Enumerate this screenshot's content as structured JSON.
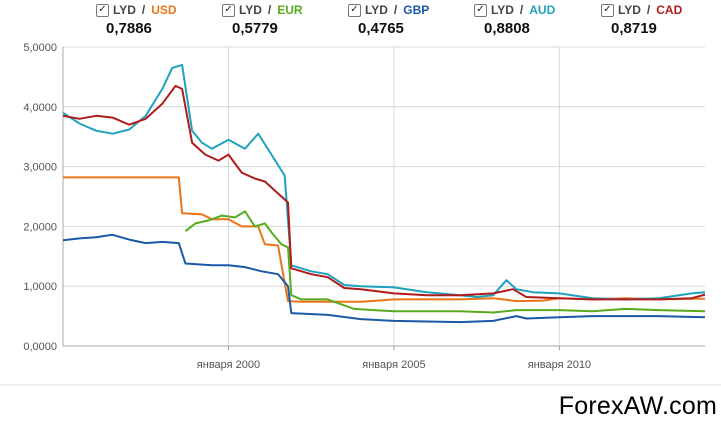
{
  "legend": [
    {
      "base": "LYD",
      "quote": "USD",
      "rate": "0,7886",
      "color": "#e8751a"
    },
    {
      "base": "LYD",
      "quote": "EUR",
      "rate": "0,5779",
      "color": "#5aaa1e"
    },
    {
      "base": "LYD",
      "quote": "GBP",
      "rate": "0,4765",
      "color": "#1a58a6"
    },
    {
      "base": "LYD",
      "quote": "AUD",
      "rate": "0,8808",
      "color": "#1fa2bd"
    },
    {
      "base": "LYD",
      "quote": "CAD",
      "rate": "0,8719",
      "color": "#b01c1c"
    }
  ],
  "watermark": "ForexAW.com",
  "chart_data": {
    "type": "line",
    "ylim": [
      0,
      5
    ],
    "xlim": [
      1995.0,
      2014.4
    ],
    "y_ticks": [
      "0,0000",
      "1,0000",
      "2,0000",
      "3,0000",
      "4,0000",
      "5,0000"
    ],
    "x_ticks": [
      {
        "value": 2000,
        "label": "января 2000"
      },
      {
        "value": 2005,
        "label": "января 2005"
      },
      {
        "value": 2010,
        "label": "января 2010"
      }
    ],
    "grid": true,
    "legend_position": "top",
    "series": [
      {
        "name": "LYD / USD",
        "color": "#e8751a",
        "points": [
          [
            1995.0,
            2.82
          ],
          [
            1998.5,
            2.82
          ],
          [
            1998.6,
            2.22
          ],
          [
            1999.2,
            2.2
          ],
          [
            1999.5,
            2.12
          ],
          [
            2000.0,
            2.12
          ],
          [
            2000.4,
            2.0
          ],
          [
            2000.9,
            2.0
          ],
          [
            2001.1,
            1.7
          ],
          [
            2001.5,
            1.68
          ],
          [
            2001.7,
            1.05
          ],
          [
            2001.8,
            0.75
          ],
          [
            2002.2,
            0.74
          ],
          [
            2004.0,
            0.74
          ],
          [
            2004.5,
            0.76
          ],
          [
            2005.0,
            0.78
          ],
          [
            2007.0,
            0.78
          ],
          [
            2008.0,
            0.8
          ],
          [
            2008.7,
            0.75
          ],
          [
            2009.5,
            0.76
          ],
          [
            2010.0,
            0.8
          ],
          [
            2011.0,
            0.78
          ],
          [
            2012.0,
            0.8
          ],
          [
            2013.0,
            0.78
          ],
          [
            2014.0,
            0.79
          ],
          [
            2014.4,
            0.79
          ]
        ]
      },
      {
        "name": "LYD / EUR",
        "color": "#5aaa1e",
        "points": [
          [
            1998.7,
            1.92
          ],
          [
            1999.0,
            2.05
          ],
          [
            1999.4,
            2.1
          ],
          [
            1999.8,
            2.18
          ],
          [
            2000.2,
            2.15
          ],
          [
            2000.5,
            2.25
          ],
          [
            2000.8,
            2.0
          ],
          [
            2001.1,
            2.05
          ],
          [
            2001.3,
            1.9
          ],
          [
            2001.6,
            1.7
          ],
          [
            2001.8,
            1.65
          ],
          [
            2001.9,
            0.85
          ],
          [
            2002.2,
            0.78
          ],
          [
            2003.0,
            0.78
          ],
          [
            2003.8,
            0.62
          ],
          [
            2005.0,
            0.58
          ],
          [
            2007.0,
            0.58
          ],
          [
            2008.0,
            0.56
          ],
          [
            2008.7,
            0.6
          ],
          [
            2010.0,
            0.6
          ],
          [
            2011.0,
            0.58
          ],
          [
            2012.0,
            0.62
          ],
          [
            2013.0,
            0.6
          ],
          [
            2014.4,
            0.58
          ]
        ]
      },
      {
        "name": "LYD / GBP",
        "color": "#1a58a6",
        "points": [
          [
            1995.0,
            1.77
          ],
          [
            1995.5,
            1.8
          ],
          [
            1996.0,
            1.82
          ],
          [
            1996.5,
            1.86
          ],
          [
            1997.0,
            1.78
          ],
          [
            1997.5,
            1.72
          ],
          [
            1998.0,
            1.74
          ],
          [
            1998.5,
            1.72
          ],
          [
            1998.7,
            1.38
          ],
          [
            1999.5,
            1.35
          ],
          [
            2000.0,
            1.35
          ],
          [
            2000.5,
            1.32
          ],
          [
            2001.0,
            1.25
          ],
          [
            2001.5,
            1.2
          ],
          [
            2001.8,
            1.0
          ],
          [
            2001.9,
            0.55
          ],
          [
            2003.0,
            0.52
          ],
          [
            2004.0,
            0.45
          ],
          [
            2005.0,
            0.42
          ],
          [
            2007.0,
            0.4
          ],
          [
            2008.0,
            0.42
          ],
          [
            2008.7,
            0.5
          ],
          [
            2009.0,
            0.46
          ],
          [
            2010.0,
            0.48
          ],
          [
            2011.0,
            0.5
          ],
          [
            2012.0,
            0.5
          ],
          [
            2013.0,
            0.5
          ],
          [
            2014.4,
            0.48
          ]
        ]
      },
      {
        "name": "LYD / AUD",
        "color": "#1fa2bd",
        "points": [
          [
            1995.0,
            3.9
          ],
          [
            1995.5,
            3.72
          ],
          [
            1996.0,
            3.6
          ],
          [
            1996.5,
            3.55
          ],
          [
            1997.0,
            3.62
          ],
          [
            1997.5,
            3.85
          ],
          [
            1998.0,
            4.3
          ],
          [
            1998.3,
            4.65
          ],
          [
            1998.6,
            4.7
          ],
          [
            1998.9,
            3.6
          ],
          [
            1999.2,
            3.4
          ],
          [
            1999.5,
            3.3
          ],
          [
            2000.0,
            3.45
          ],
          [
            2000.5,
            3.3
          ],
          [
            2000.9,
            3.55
          ],
          [
            2001.3,
            3.2
          ],
          [
            2001.7,
            2.85
          ],
          [
            2001.9,
            1.35
          ],
          [
            2002.5,
            1.25
          ],
          [
            2003.0,
            1.2
          ],
          [
            2003.5,
            1.02
          ],
          [
            2004.0,
            1.0
          ],
          [
            2005.0,
            0.98
          ],
          [
            2006.0,
            0.9
          ],
          [
            2007.0,
            0.85
          ],
          [
            2007.5,
            0.82
          ],
          [
            2008.0,
            0.85
          ],
          [
            2008.4,
            1.1
          ],
          [
            2008.7,
            0.95
          ],
          [
            2009.2,
            0.9
          ],
          [
            2010.0,
            0.88
          ],
          [
            2011.0,
            0.8
          ],
          [
            2012.0,
            0.78
          ],
          [
            2013.0,
            0.8
          ],
          [
            2014.0,
            0.88
          ],
          [
            2014.4,
            0.9
          ]
        ]
      },
      {
        "name": "LYD / CAD",
        "color": "#b01c1c",
        "points": [
          [
            1995.0,
            3.85
          ],
          [
            1995.5,
            3.8
          ],
          [
            1996.0,
            3.85
          ],
          [
            1996.5,
            3.82
          ],
          [
            1997.0,
            3.7
          ],
          [
            1997.5,
            3.8
          ],
          [
            1998.0,
            4.05
          ],
          [
            1998.4,
            4.35
          ],
          [
            1998.6,
            4.3
          ],
          [
            1998.9,
            3.4
          ],
          [
            1999.3,
            3.2
          ],
          [
            1999.7,
            3.1
          ],
          [
            2000.0,
            3.2
          ],
          [
            2000.4,
            2.9
          ],
          [
            2000.8,
            2.8
          ],
          [
            2001.1,
            2.75
          ],
          [
            2001.4,
            2.6
          ],
          [
            2001.8,
            2.4
          ],
          [
            2001.9,
            1.3
          ],
          [
            2002.5,
            1.2
          ],
          [
            2003.0,
            1.15
          ],
          [
            2003.5,
            0.97
          ],
          [
            2004.0,
            0.95
          ],
          [
            2005.0,
            0.88
          ],
          [
            2006.0,
            0.85
          ],
          [
            2007.0,
            0.85
          ],
          [
            2008.0,
            0.88
          ],
          [
            2008.6,
            0.95
          ],
          [
            2009.0,
            0.82
          ],
          [
            2010.0,
            0.8
          ],
          [
            2011.0,
            0.78
          ],
          [
            2012.0,
            0.78
          ],
          [
            2013.0,
            0.78
          ],
          [
            2014.0,
            0.8
          ],
          [
            2014.4,
            0.86
          ]
        ]
      }
    ]
  }
}
